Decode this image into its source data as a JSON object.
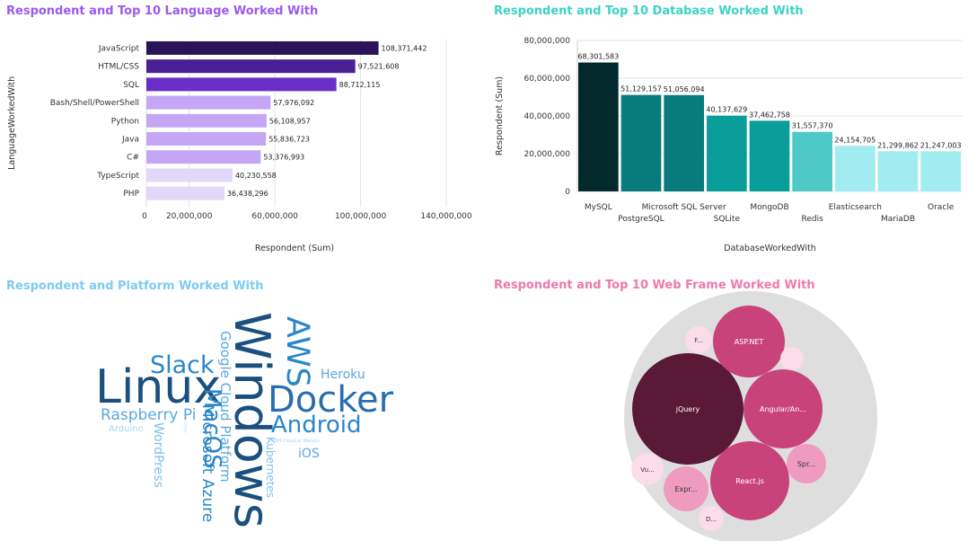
{
  "panels": {
    "languages": {
      "title": "Respondent and Top 10 Language Worked With",
      "color": "#9b59f0"
    },
    "databases": {
      "title": "Respondent and Top 10 Database Worked With",
      "color": "#3bd4c4"
    },
    "platforms": {
      "title": "Respondent and Platform Worked With",
      "color": "#7ccbf2"
    },
    "webframes": {
      "title": "Respondent and Top 10 Web Frame Worked With",
      "color": "#ef7aa9"
    }
  },
  "chart_data": [
    {
      "type": "bar",
      "orientation": "horizontal",
      "title": "Respondent and Top 10 Language Worked With",
      "xlabel": "Respondent (Sum)",
      "ylabel": "LanguageWorkedWith",
      "xlim": [
        0,
        140000000
      ],
      "xticks": [
        "0",
        "20,000,000",
        "60,000,000",
        "100,000,000",
        "140,000,000"
      ],
      "categories": [
        "JavaScript",
        "HTML/CSS",
        "SQL",
        "Bash/Shell/PowerShell",
        "Python",
        "Java",
        "C#",
        "TypeScript",
        "PHP"
      ],
      "values": [
        108371442,
        97521608,
        88712115,
        57976092,
        56108957,
        55836723,
        53376993,
        40230558,
        36438296
      ],
      "value_labels": [
        "108,371,442",
        "97,521,608",
        "88,712,115",
        "57,976,092",
        "56,108,957",
        "55,836,723",
        "53,376,993",
        "40,230,558",
        "36,438,296"
      ],
      "colors": [
        "#2a1358",
        "#4a1f94",
        "#6a2ec8",
        "#c5a6f5",
        "#c5a6f5",
        "#c5a6f5",
        "#c5a6f5",
        "#e2d6f9",
        "#e2d6f9"
      ],
      "grid": true
    },
    {
      "type": "bar",
      "orientation": "vertical",
      "title": "Respondent and Top 10 Database Worked With",
      "xlabel": "DatabaseWorkedWith",
      "ylabel": "Respondent (Sum)",
      "ylim": [
        0,
        80000000
      ],
      "yticks": [
        "0",
        "20,000,000",
        "40,000,000",
        "60,000,000",
        "80,000,000"
      ],
      "categories": [
        "MySQL",
        "PostgreSQL",
        "Microsoft SQL Server",
        "SQLite",
        "MongoDB",
        "Redis",
        "Elasticsearch",
        "MariaDB",
        "Oracle"
      ],
      "values": [
        68301583,
        51129157,
        51056094,
        40137629,
        37462758,
        31557370,
        24154705,
        21299862,
        21247003
      ],
      "value_labels": [
        "68,301,583",
        "51,129,157",
        "51,056,094",
        "40,137,629",
        "37,462,758",
        "31,557,370",
        "24,154,705",
        "21,299,862",
        "21,247,003"
      ],
      "colors": [
        "#022a2d",
        "#087c7c",
        "#087c7c",
        "#0a9e9a",
        "#0a9e9a",
        "#4ec9c5",
        "#a0ecf0",
        "#a0ecf0",
        "#a0ecf0"
      ],
      "grid": true
    },
    {
      "type": "wordcloud",
      "title": "Respondent and Platform Worked With",
      "words": [
        {
          "text": "Windows",
          "color": "#1a4f7e"
        },
        {
          "text": "Linux",
          "color": "#1a4f7e"
        },
        {
          "text": "Docker",
          "color": "#2a6db0"
        },
        {
          "text": "AWS",
          "color": "#2a86c9"
        },
        {
          "text": "Android",
          "color": "#2a86c9"
        },
        {
          "text": "Slack",
          "color": "#2a86c9"
        },
        {
          "text": "MacOS",
          "color": "#2a86c9"
        },
        {
          "text": "Microsoft Azure",
          "color": "#2a86c9"
        },
        {
          "text": "Raspberry Pi",
          "color": "#5aa8dd"
        },
        {
          "text": "Google Cloud Platform",
          "color": "#5aa8dd"
        },
        {
          "text": "Heroku",
          "color": "#5aa8dd"
        },
        {
          "text": "WordPress",
          "color": "#7cc0ea"
        },
        {
          "text": "Kubernetes",
          "color": "#7cc0ea"
        },
        {
          "text": "iOS",
          "color": "#5aa8dd"
        },
        {
          "text": "Arduino",
          "color": "#a8d4f2"
        },
        {
          "text": "IBM Cloud or Watson",
          "color": "#a8d4f2"
        },
        {
          "text": "Other",
          "color": "#c6e2f6"
        }
      ]
    },
    {
      "type": "bubble",
      "title": "Respondent and Top 10 Web Frame Worked With",
      "bubbles": [
        {
          "label": "jQuery",
          "color": "#5a1a37"
        },
        {
          "label": "React.js",
          "color": "#c9437b"
        },
        {
          "label": "Angular/An...",
          "color": "#c9437b"
        },
        {
          "label": "ASP.NET",
          "color": "#c9437b"
        },
        {
          "label": "Spr...",
          "color": "#ef9bbf"
        },
        {
          "label": "Expr...",
          "color": "#ef9bbf"
        },
        {
          "label": "Vu...",
          "color": "#fbdce8"
        },
        {
          "label": "F...",
          "color": "#fbdce8"
        },
        {
          "label": "D...",
          "color": "#fbdce8"
        },
        {
          "label": "",
          "color": "#fbdce8"
        }
      ]
    }
  ]
}
